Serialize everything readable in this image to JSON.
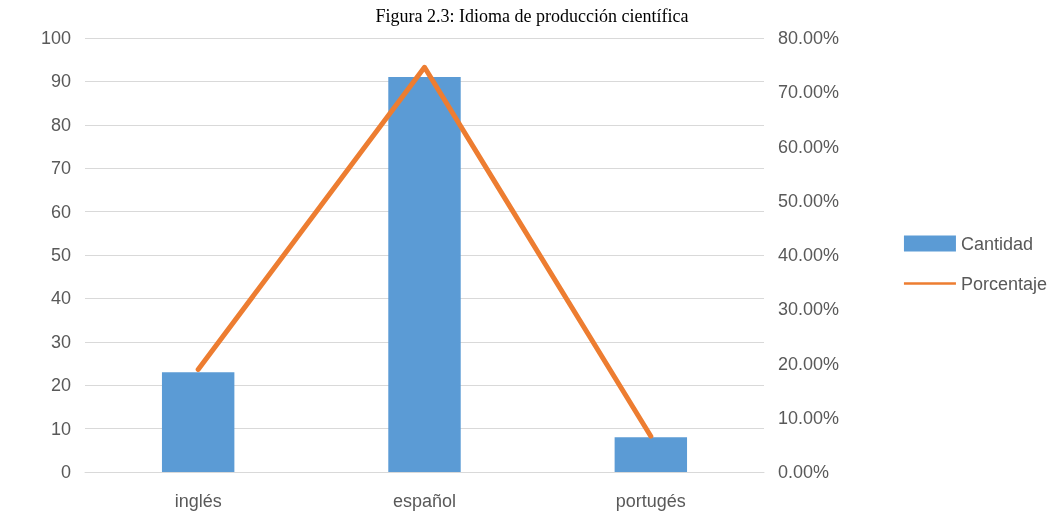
{
  "chart_data": {
    "type": "bar",
    "title": "Figura 2.3: Idioma de producción científica",
    "categories": [
      "inglés",
      "español",
      "portugés"
    ],
    "series": [
      {
        "name": "Cantidad",
        "color": "#5b9bd5",
        "values": [
          23,
          91,
          8
        ]
      },
      {
        "name": "Porcentaje",
        "type": "line",
        "axis": "y2",
        "color": "#ed7d31",
        "values": [
          18.9,
          74.6,
          6.6
        ]
      }
    ],
    "ylim": [
      0,
      100
    ],
    "yticks": [
      0,
      10,
      20,
      30,
      40,
      50,
      60,
      70,
      80,
      90,
      100
    ],
    "y2lim": [
      0,
      80
    ],
    "y2ticks": [
      {
        "value": 0,
        "label": "0.00%"
      },
      {
        "value": 10,
        "label": "10.00%"
      },
      {
        "value": 20,
        "label": "20.00%"
      },
      {
        "value": 30,
        "label": "30.00%"
      },
      {
        "value": 40,
        "label": "40.00%"
      },
      {
        "value": 50,
        "label": "50.00%"
      },
      {
        "value": 60,
        "label": "60.00%"
      },
      {
        "value": 70,
        "label": "70.00%"
      },
      {
        "value": 80,
        "label": "80.00%"
      }
    ],
    "grid": "y",
    "legend": "right",
    "marker": "none"
  }
}
